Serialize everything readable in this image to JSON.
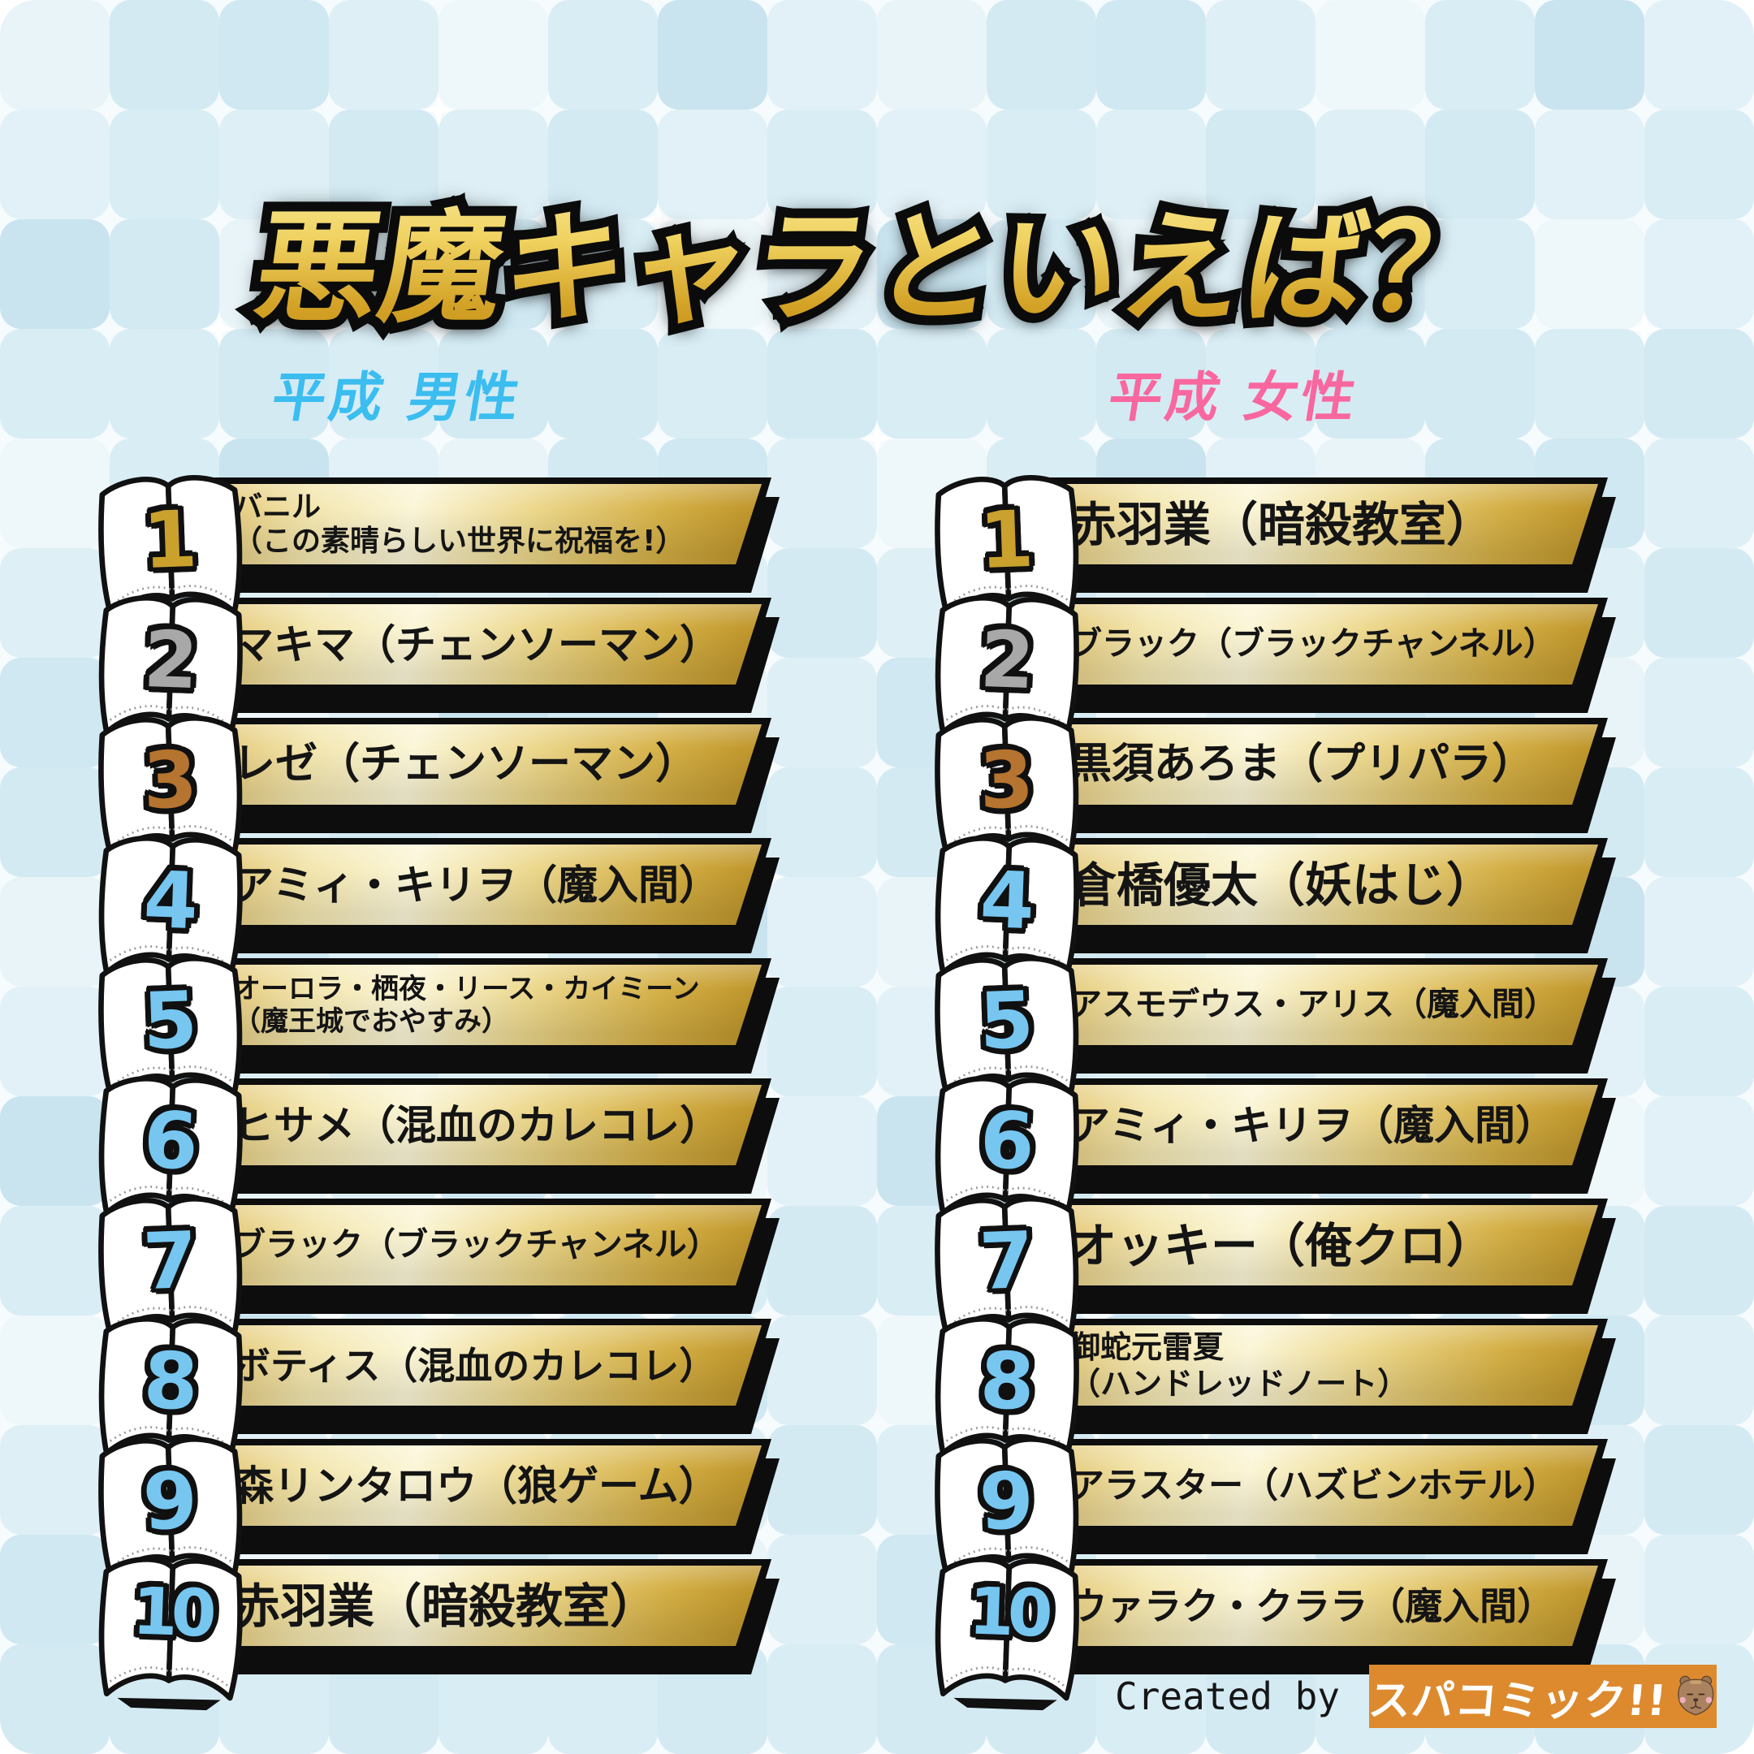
{
  "title": "悪魔キャラといえば？",
  "columns": [
    {
      "id": "heisei-male",
      "header": "平成 男性",
      "items": [
        {
          "rank": "1",
          "lines": [
            "バニル",
            "（この素晴らしい世界に祝福を!）"
          ]
        },
        {
          "rank": "2",
          "lines": [
            "マキマ（チェンソーマン）"
          ]
        },
        {
          "rank": "3",
          "lines": [
            "レゼ（チェンソーマン）"
          ]
        },
        {
          "rank": "4",
          "lines": [
            "アミィ・キリヲ（魔入間）"
          ]
        },
        {
          "rank": "5",
          "lines": [
            "オーロラ・栖夜・リース・カイミーン",
            "（魔王城でおやすみ）"
          ]
        },
        {
          "rank": "6",
          "lines": [
            "ヒサメ（混血のカレコレ）"
          ]
        },
        {
          "rank": "7",
          "lines": [
            "ブラック（ブラックチャンネル）"
          ]
        },
        {
          "rank": "8",
          "lines": [
            "ボティス（混血のカレコレ）"
          ]
        },
        {
          "rank": "9",
          "lines": [
            "森リンタロウ（狼ゲーム）"
          ]
        },
        {
          "rank": "10",
          "lines": [
            "赤羽業（暗殺教室）"
          ]
        }
      ]
    },
    {
      "id": "heisei-female",
      "header": "平成 女性",
      "items": [
        {
          "rank": "1",
          "lines": [
            "赤羽業（暗殺教室）"
          ]
        },
        {
          "rank": "2",
          "lines": [
            "ブラック（ブラックチャンネル）"
          ]
        },
        {
          "rank": "3",
          "lines": [
            "黒須あろま（プリパラ）"
          ]
        },
        {
          "rank": "4",
          "lines": [
            "倉橋優太（妖はじ）"
          ]
        },
        {
          "rank": "5",
          "lines": [
            "アスモデウス・アリス（魔入間）"
          ]
        },
        {
          "rank": "6",
          "lines": [
            "アミィ・キリヲ（魔入間）"
          ]
        },
        {
          "rank": "7",
          "lines": [
            "オッキー（俺クロ）"
          ]
        },
        {
          "rank": "8",
          "lines": [
            "御蛇元雷夏",
            "（ハンドレッドノート）"
          ]
        },
        {
          "rank": "9",
          "lines": [
            "アラスター（ハズビンホテル）"
          ]
        },
        {
          "rank": "10",
          "lines": [
            "ウァラク・クララ（魔入間）"
          ]
        }
      ]
    }
  ],
  "footer": {
    "credit": "Created by",
    "brand": "スパコミック!!",
    "brand_icon": "capybara-mascot-icon"
  },
  "colors": {
    "header_male": "#3bbdf0",
    "header_female": "#f9679f",
    "title_gold_top": "#f8ea9d",
    "title_gold_bottom": "#c6931b",
    "rank_1": "#c9a12c",
    "rank_2": "#a8a8a8",
    "rank_3": "#b5742f",
    "rank_default": "#76c6f0",
    "banner_gold_light": "#fbf6d8",
    "banner_gold_dark": "#bb9127",
    "badge_orange": "#dd8a2e",
    "bg_tiles": [
      "#e8f4f8",
      "#d9edf5",
      "#cfe8f2",
      "#e2f1f7",
      "#eef7fa",
      "#d3eaf3",
      "#c9e4ef",
      "#def0f6"
    ]
  }
}
